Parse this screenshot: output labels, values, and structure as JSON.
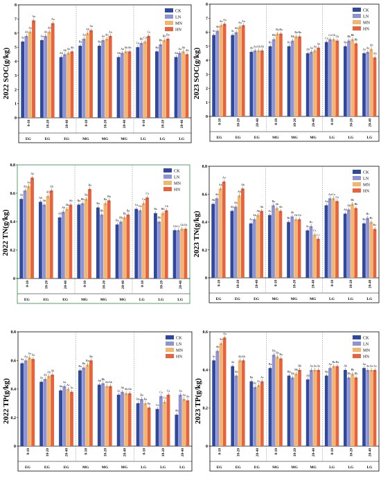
{
  "chart_data": [
    {
      "type": "bar",
      "ylabel": "2022 SOC(g/kg)",
      "ylim": [
        0,
        8
      ],
      "yticks": [
        0,
        1,
        2,
        3,
        4,
        5,
        6,
        7,
        8
      ],
      "categories": [
        "0-10",
        "10-20",
        "20-40",
        "0-10",
        "10-20",
        "20-40",
        "0-10",
        "10-20",
        "20-40"
      ],
      "groups": [
        "EG",
        "EG",
        "EG",
        "MG",
        "MG",
        "MG",
        "LG",
        "LG",
        "LG"
      ],
      "series": [
        {
          "name": "CK",
          "values": [
            5.4,
            5.5,
            4.3,
            5.1,
            5.1,
            4.3,
            5.0,
            4.7,
            4.3
          ]
        },
        {
          "name": "LN",
          "values": [
            5.8,
            5.8,
            4.5,
            5.6,
            5.5,
            4.6,
            5.3,
            5.2,
            4.6
          ]
        },
        {
          "name": "MN",
          "values": [
            6.1,
            6.1,
            4.6,
            6.0,
            5.6,
            4.7,
            5.4,
            5.5,
            4.7
          ]
        },
        {
          "name": "HN",
          "values": [
            6.9,
            6.7,
            4.7,
            6.2,
            5.8,
            4.7,
            5.8,
            5.6,
            4.5
          ]
        }
      ],
      "labels": [
        [
          "Aa",
          "Aa",
          "Ab",
          "Ba",
          "Ba",
          "Ab",
          "Ca",
          "Ba",
          "Ab"
        ],
        [
          "Ab",
          "Ab",
          "Ab",
          "Aa",
          "Aa",
          "Aa",
          "Bb",
          "Bb",
          "Aa"
        ],
        [
          "Aa",
          "Ab",
          "Aa",
          "Ab",
          "Ab",
          "Ab",
          "Ca",
          "Bb",
          "Ab"
        ],
        [
          "Aa",
          "Aa",
          "Ab",
          "Aa",
          "Aa",
          "Ab",
          "Ca",
          "Ba",
          "Ab"
        ]
      ],
      "legend": [
        "CK",
        "LN",
        "MN",
        "HN"
      ]
    },
    {
      "type": "bar",
      "ylabel": "2023 SOC(g/kg)",
      "ylim": [
        0,
        8
      ],
      "yticks": [
        0,
        1,
        2,
        3,
        4,
        5,
        6,
        7,
        8
      ],
      "categories": [
        "0-10",
        "10-20",
        "20-40",
        "0-10",
        "10-20",
        "20-40",
        "0-10",
        "10-20",
        "20-40"
      ],
      "groups": [
        "EG",
        "EG",
        "EG",
        "MG",
        "MG",
        "MG",
        "LG",
        "LG",
        "LG"
      ],
      "series": [
        {
          "name": "CK",
          "values": [
            5.8,
            5.8,
            4.6,
            5.0,
            5.0,
            4.5,
            5.3,
            5.0,
            4.5
          ]
        },
        {
          "name": "LN",
          "values": [
            6.1,
            6.0,
            4.7,
            5.5,
            5.4,
            4.6,
            5.5,
            5.4,
            4.6
          ]
        },
        {
          "name": "MN",
          "values": [
            6.5,
            6.4,
            4.7,
            5.9,
            5.7,
            4.7,
            5.5,
            5.5,
            4.8
          ]
        },
        {
          "name": "HN",
          "values": [
            6.6,
            6.5,
            4.7,
            5.9,
            5.7,
            4.9,
            5.4,
            5.2,
            4.2
          ]
        }
      ],
      "labels": [
        [
          "Ac",
          "Ac",
          "Ab",
          "Bc",
          "Bc",
          "Ab",
          "Ca",
          "Ba",
          "Aa"
        ],
        [
          "Ab",
          "Ab",
          "Aa",
          "Bb",
          "Bb",
          "Aa",
          "Ca",
          "Bb",
          "Aa"
        ],
        [
          "Aa",
          "Aa",
          "Ab",
          "Ba",
          "Ba",
          "Aa",
          "Cb",
          "Bb",
          "Ab"
        ],
        [
          "Aa",
          "Aa",
          "Ab",
          "Ba",
          "Ba",
          "Aa",
          "Cb",
          "Bb",
          "Ab"
        ]
      ],
      "legend": [
        "CK",
        "LN",
        "MN",
        "HN"
      ]
    },
    {
      "type": "bar",
      "ylabel": "2022 TN(g/kg)",
      "ylim": [
        0,
        0.8
      ],
      "yticks": [
        0,
        0.2,
        0.4,
        0.6,
        0.8
      ],
      "categories": [
        "0-10",
        "10-20",
        "20-40",
        "0-10",
        "10-20",
        "20-40",
        "0-10",
        "10-20",
        "20-40"
      ],
      "groups": [
        "EG",
        "EG",
        "EG",
        "MG",
        "MG",
        "MG",
        "LG",
        "LG",
        "LG"
      ],
      "series": [
        {
          "name": "CK",
          "values": [
            0.56,
            0.54,
            0.43,
            0.52,
            0.5,
            0.38,
            0.49,
            0.46,
            0.34
          ]
        },
        {
          "name": "LN",
          "values": [
            0.62,
            0.52,
            0.47,
            0.53,
            0.45,
            0.4,
            0.48,
            0.4,
            0.34
          ]
        },
        {
          "name": "MN",
          "values": [
            0.65,
            0.58,
            0.49,
            0.56,
            0.53,
            0.43,
            0.53,
            0.46,
            0.35
          ]
        },
        {
          "name": "HN",
          "values": [
            0.71,
            0.62,
            0.52,
            0.63,
            0.55,
            0.45,
            0.57,
            0.48,
            0.35
          ]
        }
      ],
      "labels": [
        [
          "Aa",
          "Ab",
          "Ab",
          "Ba",
          "Ba",
          "Ba",
          "Ca",
          "Ba",
          "Cb"
        ],
        [
          "Ab",
          "Ab",
          "Ab",
          "Bb",
          "Bb",
          "Bb",
          "Cb",
          "Bb",
          "Cc"
        ],
        [
          "Aa",
          "Ab",
          "Ab",
          "Ba",
          "Ba",
          "Ba",
          "Ca",
          "Bb",
          "Cb"
        ],
        [
          "Aa",
          "Ab",
          "Ab",
          "Ba",
          "Bb",
          "Ba",
          "Ca",
          "Cb",
          "Cb"
        ]
      ],
      "legend": [
        "CK",
        "LN",
        "MN",
        "HN"
      ]
    },
    {
      "type": "bar",
      "ylabel": "2023 TN(g/kg)",
      "ylim": [
        0,
        0.8
      ],
      "yticks": [
        0,
        0.2,
        0.4,
        0.6,
        0.8
      ],
      "categories": [
        "0-10",
        "10-20",
        "20-40",
        "0-10",
        "10-20",
        "20-40",
        "0-10",
        "10-20",
        "20-40"
      ],
      "groups": [
        "EG",
        "EG",
        "EG",
        "MG",
        "MG",
        "MG",
        "LG",
        "LG",
        "LG"
      ],
      "series": [
        {
          "name": "CK",
          "values": [
            0.53,
            0.48,
            0.39,
            0.45,
            0.4,
            0.34,
            0.52,
            0.46,
            0.39
          ]
        },
        {
          "name": "LN",
          "values": [
            0.57,
            0.51,
            0.42,
            0.52,
            0.44,
            0.37,
            0.57,
            0.49,
            0.43
          ]
        },
        {
          "name": "MN",
          "values": [
            0.64,
            0.59,
            0.45,
            0.5,
            0.42,
            0.31,
            0.57,
            0.53,
            0.4
          ]
        },
        {
          "name": "HN",
          "values": [
            0.69,
            0.64,
            0.48,
            0.48,
            0.42,
            0.28,
            0.55,
            0.5,
            0.35
          ]
        }
      ],
      "labels": [
        [
          "Ab",
          "Ab",
          "Ac",
          "Ac",
          "Bc",
          "Ac",
          "Aa",
          "Ab",
          "Bc"
        ],
        [
          "Ab",
          "Ab",
          "Ab",
          "Ba",
          "Ab",
          "Bc",
          "Aa",
          "Ab",
          "Bc"
        ],
        [
          "Aa",
          "Ab",
          "Ab",
          "Ab",
          "Cb",
          "Cc",
          "Ca",
          "Bb",
          "Bc"
        ],
        [
          "Aa",
          "Ab",
          "Ab",
          "Ab",
          "Cb",
          "Cc",
          "Ca",
          "Bb",
          "Bc"
        ]
      ],
      "legend": [
        "CK",
        "LN",
        "MN",
        "HN"
      ]
    },
    {
      "type": "bar",
      "ylabel": "2022 TP(g/kg)",
      "ylim": [
        0,
        0.8
      ],
      "yticks": [
        0,
        0.2,
        0.4,
        0.6,
        0.8
      ],
      "categories": [
        "0-10",
        "10-20",
        "20-40",
        "0-10",
        "10-20",
        "20-40",
        "0-10",
        "10-20",
        "20-40"
      ],
      "groups": [
        "EG",
        "EG",
        "EG",
        "MG",
        "MG",
        "MG",
        "LG",
        "LG",
        "LG"
      ],
      "series": [
        {
          "name": "CK",
          "values": [
            0.58,
            0.45,
            0.39,
            0.53,
            0.43,
            0.36,
            0.3,
            0.26,
            0.22
          ]
        },
        {
          "name": "LN",
          "values": [
            0.6,
            0.47,
            0.42,
            0.55,
            0.44,
            0.38,
            0.33,
            0.35,
            0.36
          ]
        },
        {
          "name": "MN",
          "values": [
            0.62,
            0.49,
            0.4,
            0.57,
            0.42,
            0.37,
            0.3,
            0.31,
            0.33
          ]
        },
        {
          "name": "HN",
          "values": [
            0.61,
            0.5,
            0.38,
            0.6,
            0.42,
            0.37,
            0.27,
            0.36,
            0.32
          ]
        }
      ],
      "labels": [
        [
          "Aa",
          "Aa",
          "Ab",
          "Ba",
          "Ab",
          "Ac",
          "Ba",
          "Ca",
          "Ab"
        ],
        [
          "Aa",
          "Ab",
          "Aa",
          "Ba",
          "Bb",
          "Ab",
          "Ba",
          "Ca",
          "Aa"
        ],
        [
          "Aa",
          "Ab",
          "Ac",
          "Ba",
          "Ab",
          "Ab",
          "Ba",
          "Ca",
          "Aa"
        ],
        [
          "Aa",
          "Ab",
          "Ac",
          "Ba",
          "Ab",
          "Ab",
          "Ba",
          "Ca",
          "Aa"
        ]
      ],
      "legend": [
        "CK",
        "LN",
        "MN",
        "HN"
      ]
    },
    {
      "type": "bar",
      "ylabel": "2023 TP(g/kg)",
      "ylim": [
        0,
        0.6
      ],
      "yticks": [
        0,
        0.2,
        0.4,
        0.6
      ],
      "categories": [
        "0-10",
        "10-20",
        "20-40",
        "0-10",
        "10-20",
        "20-40",
        "0-10",
        "10-20",
        "20-40"
      ],
      "groups": [
        "EG",
        "EG",
        "EG",
        "MG",
        "MG",
        "MG",
        "LG",
        "LG",
        "LG"
      ],
      "series": [
        {
          "name": "CK",
          "values": [
            0.45,
            0.42,
            0.34,
            0.41,
            0.37,
            0.35,
            0.37,
            0.4,
            0.41
          ]
        },
        {
          "name": "LN",
          "values": [
            0.5,
            0.37,
            0.31,
            0.48,
            0.36,
            0.4,
            0.41,
            0.36,
            0.4
          ]
        },
        {
          "name": "MN",
          "values": [
            0.54,
            0.45,
            0.32,
            0.47,
            0.38,
            0.4,
            0.42,
            0.38,
            0.4
          ]
        },
        {
          "name": "HN",
          "values": [
            0.57,
            0.45,
            0.34,
            0.46,
            0.4,
            0.4,
            0.42,
            0.36,
            0.4
          ]
        }
      ],
      "labels": [
        [
          "Ac",
          "Aa",
          "Ba",
          "Ba",
          "Bb",
          "Ab",
          "Ba",
          "Ab",
          "Aa"
        ],
        [
          "Ab",
          "Ab",
          "Bc",
          "Ba",
          "Bb",
          "Aa",
          "Aa",
          "Bb",
          "Aa"
        ],
        [
          "Aa",
          "Ab",
          "Ac",
          "Ba",
          "Bb",
          "Aa",
          "Ba",
          "Bb",
          "Aa"
        ],
        [
          "Aa",
          "Ab",
          "Ac",
          "Ba",
          "Bb",
          "Aa",
          "Ba",
          "Bb",
          "Aa"
        ]
      ],
      "legend": [
        "CK",
        "LN",
        "MN",
        "HN"
      ]
    }
  ],
  "colors": {
    "CK": "#2f4a9c",
    "LN": "#8f93d4",
    "MN": "#f2b66e",
    "HN": "#e8633c",
    "divider": "#888888",
    "frame_highlight": "#2a8c3c"
  }
}
